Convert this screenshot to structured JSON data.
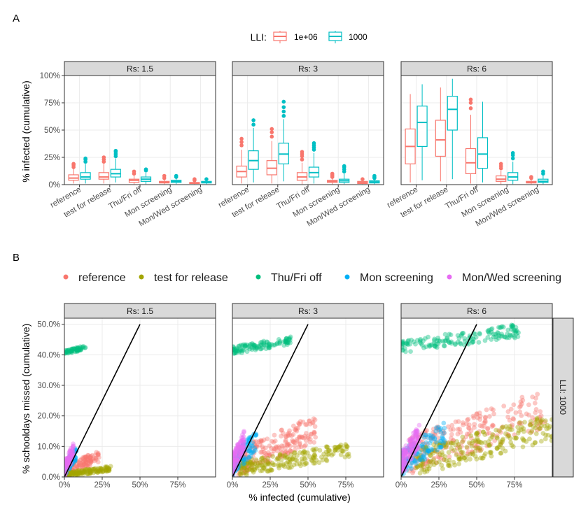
{
  "colors": {
    "lli_hi": "#F8766D",
    "lli_lo": "#00BFC4",
    "reference": "#F8766D",
    "test_for_release": "#A3A500",
    "thu_fri_off": "#00BF7D",
    "mon_screening": "#00B0F6",
    "mon_wed_screening": "#E76BF3",
    "strip_bg": "#D9D9D9",
    "grid": "#EBEBEB"
  },
  "chart_data": [
    {
      "panel": "A",
      "type": "boxplot",
      "ylabel": "% infected (cumulative)",
      "ylim": [
        0,
        100
      ],
      "yticks": [
        0,
        25,
        50,
        75,
        100
      ],
      "ytick_labels": [
        "0%",
        "25%",
        "50%",
        "75%",
        "100%"
      ],
      "legend": {
        "title": "LLI:",
        "position": "top",
        "entries": [
          "1e+06",
          "1000"
        ]
      },
      "categories": [
        "reference",
        "test for release",
        "Thu/Fri off",
        "Mon screening",
        "Mon/Wed screening"
      ],
      "facets": [
        {
          "strip": "Rs: 1.5",
          "series": [
            {
              "name": "1e+06",
              "boxes": [
                {
                  "wl": 1,
                  "q1": 4,
                  "med": 6,
                  "q3": 9,
                  "wh": 15,
                  "out": [
                    16,
                    18,
                    19
                  ]
                },
                {
                  "wl": 1,
                  "q1": 5,
                  "med": 7,
                  "q3": 11,
                  "wh": 19,
                  "out": [
                    21,
                    23,
                    25
                  ]
                },
                {
                  "wl": 0.5,
                  "q1": 2,
                  "med": 4,
                  "q3": 5,
                  "wh": 8,
                  "out": [
                    10,
                    12
                  ]
                },
                {
                  "wl": 0.5,
                  "q1": 1.5,
                  "med": 2,
                  "q3": 3,
                  "wh": 5,
                  "out": [
                    6,
                    8
                  ]
                },
                {
                  "wl": 0.5,
                  "q1": 1,
                  "med": 1.5,
                  "q3": 2,
                  "wh": 3,
                  "out": [
                    4,
                    5
                  ]
                }
              ]
            },
            {
              "name": "1000",
              "boxes": [
                {
                  "wl": 1,
                  "q1": 5,
                  "med": 7,
                  "q3": 11,
                  "wh": 19,
                  "out": [
                    21,
                    23,
                    24
                  ]
                },
                {
                  "wl": 2,
                  "q1": 7,
                  "med": 10,
                  "q3": 14,
                  "wh": 24,
                  "out": [
                    26,
                    28,
                    30,
                    31
                  ]
                },
                {
                  "wl": 0.5,
                  "q1": 3,
                  "med": 5,
                  "q3": 7,
                  "wh": 11,
                  "out": [
                    13,
                    14
                  ]
                },
                {
                  "wl": 0.5,
                  "q1": 2,
                  "med": 3,
                  "q3": 4,
                  "wh": 6,
                  "out": [
                    7,
                    8
                  ]
                },
                {
                  "wl": 0.5,
                  "q1": 1.5,
                  "med": 2,
                  "q3": 3,
                  "wh": 4,
                  "out": [
                    5
                  ]
                }
              ]
            }
          ]
        },
        {
          "strip": "Rs: 3",
          "series": [
            {
              "name": "1e+06",
              "boxes": [
                {
                  "wl": 1,
                  "q1": 7,
                  "med": 12,
                  "q3": 17,
                  "wh": 32,
                  "out": [
                    36,
                    39,
                    42
                  ]
                },
                {
                  "wl": 1,
                  "q1": 9,
                  "med": 15,
                  "q3": 22,
                  "wh": 40,
                  "out": [
                    44,
                    48,
                    51
                  ]
                },
                {
                  "wl": 0.5,
                  "q1": 4,
                  "med": 7,
                  "q3": 11,
                  "wh": 20,
                  "out": [
                    23,
                    26,
                    28,
                    30
                  ]
                },
                {
                  "wl": 0.5,
                  "q1": 2,
                  "med": 3,
                  "q3": 4,
                  "wh": 6,
                  "out": [
                    7,
                    8,
                    9,
                    10
                  ]
                },
                {
                  "wl": 0.5,
                  "q1": 1,
                  "med": 2,
                  "q3": 3,
                  "wh": 4,
                  "out": [
                    5
                  ]
                }
              ]
            },
            {
              "name": "1000",
              "boxes": [
                {
                  "wl": 2,
                  "q1": 14,
                  "med": 22,
                  "q3": 31,
                  "wh": 52,
                  "out": [
                    55,
                    59
                  ]
                },
                {
                  "wl": 3,
                  "q1": 19,
                  "med": 28,
                  "q3": 38,
                  "wh": 60,
                  "out": [
                    63,
                    67,
                    71,
                    76
                  ]
                },
                {
                  "wl": 1,
                  "q1": 7,
                  "med": 11,
                  "q3": 16,
                  "wh": 29,
                  "out": [
                    32,
                    34,
                    36,
                    38
                  ]
                },
                {
                  "wl": 0.5,
                  "q1": 2,
                  "med": 3.5,
                  "q3": 5,
                  "wh": 10,
                  "out": [
                    12,
                    14,
                    16,
                    17
                  ]
                },
                {
                  "wl": 0.5,
                  "q1": 1.5,
                  "med": 2.5,
                  "q3": 3.5,
                  "wh": 5,
                  "out": [
                    6,
                    7,
                    8
                  ]
                }
              ]
            }
          ]
        },
        {
          "strip": "Rs: 6",
          "series": [
            {
              "name": "1e+06",
              "boxes": [
                {
                  "wl": 2,
                  "q1": 19,
                  "med": 35,
                  "q3": 51,
                  "wh": 83
                },
                {
                  "wl": 3,
                  "q1": 26,
                  "med": 41,
                  "q3": 59,
                  "wh": 89
                },
                {
                  "wl": 1,
                  "q1": 10,
                  "med": 20,
                  "q3": 33,
                  "wh": 64,
                  "out": [
                    70,
                    75,
                    78
                  ]
                },
                {
                  "wl": 0.5,
                  "q1": 3,
                  "med": 5,
                  "q3": 8,
                  "wh": 13,
                  "out": [
                    15,
                    17,
                    19
                  ]
                },
                {
                  "wl": 0.5,
                  "q1": 1.5,
                  "med": 2,
                  "q3": 3,
                  "wh": 5,
                  "out": [
                    6,
                    7
                  ]
                }
              ]
            },
            {
              "name": "1000",
              "boxes": [
                {
                  "wl": 4,
                  "q1": 35,
                  "med": 57,
                  "q3": 72,
                  "wh": 92
                },
                {
                  "wl": 5,
                  "q1": 50,
                  "med": 69,
                  "q3": 81,
                  "wh": 97
                },
                {
                  "wl": 2,
                  "q1": 15,
                  "med": 28,
                  "q3": 43,
                  "wh": 76
                },
                {
                  "wl": 0.5,
                  "q1": 4,
                  "med": 7,
                  "q3": 11,
                  "wh": 21,
                  "out": [
                    24,
                    27,
                    29
                  ]
                },
                {
                  "wl": 0.5,
                  "q1": 2,
                  "med": 3,
                  "q3": 5,
                  "wh": 8,
                  "out": [
                    10,
                    12
                  ]
                }
              ]
            }
          ]
        }
      ]
    },
    {
      "panel": "B",
      "type": "scatter",
      "xlabel": "% infected (cumulative)",
      "ylabel": "% schooldays missed (cumulative)",
      "xlim": [
        0,
        100
      ],
      "ylim": [
        0,
        52
      ],
      "xticks": [
        0,
        25,
        50,
        75
      ],
      "xtick_labels": [
        "0%",
        "25%",
        "50%",
        "75%"
      ],
      "yticks": [
        0,
        10,
        20,
        30,
        40,
        50
      ],
      "ytick_labels": [
        "0.0%",
        "10.0%",
        "20.0%",
        "30.0%",
        "40.0%",
        "50.0%"
      ],
      "legend": {
        "position": "top",
        "entries": [
          "reference",
          "test for release",
          "Thu/Fri off",
          "Mon screening",
          "Mon/Wed screening"
        ]
      },
      "row_strip": "LLI: 1000",
      "reference_line": {
        "slope": 1,
        "from": [
          0,
          0
        ],
        "to": [
          50,
          50
        ]
      },
      "facets": [
        {
          "strip": "Rs: 1.5",
          "series": [
            {
              "name": "Thu/Fri off",
              "x_range": [
                0,
                14
              ],
              "y_range": [
                40,
                43
              ],
              "n": 60
            },
            {
              "name": "reference",
              "x_range": [
                1,
                23
              ],
              "y_range": [
                0,
                8.5
              ],
              "n": 120
            },
            {
              "name": "test for release",
              "x_range": [
                2,
                31
              ],
              "y_range": [
                0,
                3.5
              ],
              "n": 120
            },
            {
              "name": "Mon screening",
              "x_range": [
                0,
                8
              ],
              "y_range": [
                0,
                10
              ],
              "n": 90
            },
            {
              "name": "Mon/Wed screening",
              "x_range": [
                0,
                6
              ],
              "y_range": [
                0,
                11
              ],
              "n": 90
            }
          ]
        },
        {
          "strip": "Rs: 3",
          "series": [
            {
              "name": "Thu/Fri off",
              "x_range": [
                0,
                40
              ],
              "y_range": [
                40,
                46
              ],
              "n": 110
            },
            {
              "name": "reference",
              "x_range": [
                4,
                55
              ],
              "y_range": [
                0,
                20
              ],
              "n": 200
            },
            {
              "name": "test for release",
              "x_range": [
                5,
                78
              ],
              "y_range": [
                0,
                11
              ],
              "n": 200
            },
            {
              "name": "Mon screening",
              "x_range": [
                0,
                16
              ],
              "y_range": [
                0,
                15
              ],
              "n": 110
            },
            {
              "name": "Mon/Wed screening",
              "x_range": [
                0,
                8
              ],
              "y_range": [
                0,
                15
              ],
              "n": 110
            }
          ]
        },
        {
          "strip": "Rs: 6",
          "series": [
            {
              "name": "Thu/Fri off",
              "x_range": [
                0,
                78
              ],
              "y_range": [
                40,
                50
              ],
              "n": 150
            },
            {
              "name": "reference",
              "x_range": [
                5,
                95
              ],
              "y_range": [
                0,
                28
              ],
              "n": 240
            },
            {
              "name": "test for release",
              "x_range": [
                10,
                100
              ],
              "y_range": [
                0,
                20
              ],
              "n": 240
            },
            {
              "name": "Mon screening",
              "x_range": [
                0,
                29
              ],
              "y_range": [
                0,
                18
              ],
              "n": 130
            },
            {
              "name": "Mon/Wed screening",
              "x_range": [
                0,
                12
              ],
              "y_range": [
                0,
                17
              ],
              "n": 130
            }
          ]
        }
      ]
    }
  ]
}
